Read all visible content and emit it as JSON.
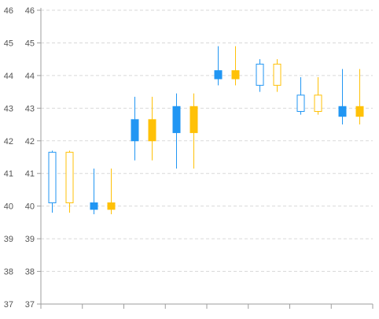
{
  "chart_data": {
    "type": "candlestick",
    "title": "",
    "xlabel": "",
    "ylabel": "",
    "ylim": [
      37,
      46
    ],
    "yticks": [
      37,
      38,
      39,
      40,
      41,
      42,
      43,
      44,
      45,
      46
    ],
    "grid": true,
    "legend": "none",
    "categories": 8,
    "series": [
      {
        "color": "#2196F3",
        "points": [
          {
            "open": 40.1,
            "high": 41.7,
            "low": 39.8,
            "close": 41.65
          },
          {
            "open": 40.1,
            "high": 41.15,
            "low": 39.75,
            "close": 39.9
          },
          {
            "open": 42.65,
            "high": 43.35,
            "low": 41.4,
            "close": 42.0
          },
          {
            "open": 43.05,
            "high": 43.45,
            "low": 41.15,
            "close": 42.25
          },
          {
            "open": 44.15,
            "high": 44.9,
            "low": 43.7,
            "close": 43.9
          },
          {
            "open": 43.7,
            "high": 44.5,
            "low": 43.5,
            "close": 44.35
          },
          {
            "open": 42.9,
            "high": 43.95,
            "low": 42.8,
            "close": 43.4
          },
          {
            "open": 43.05,
            "high": 44.2,
            "low": 42.5,
            "close": 42.75
          }
        ]
      },
      {
        "color": "#FFC107",
        "points": [
          {
            "open": 40.1,
            "high": 41.7,
            "low": 39.8,
            "close": 41.65
          },
          {
            "open": 40.1,
            "high": 41.15,
            "low": 39.75,
            "close": 39.9
          },
          {
            "open": 42.65,
            "high": 43.35,
            "low": 41.4,
            "close": 42.0
          },
          {
            "open": 43.05,
            "high": 43.45,
            "low": 41.15,
            "close": 42.25
          },
          {
            "open": 44.15,
            "high": 44.9,
            "low": 43.7,
            "close": 43.9
          },
          {
            "open": 43.7,
            "high": 44.5,
            "low": 43.5,
            "close": 44.35
          },
          {
            "open": 42.9,
            "high": 43.95,
            "low": 42.8,
            "close": 43.4
          },
          {
            "open": 43.05,
            "high": 44.2,
            "low": 42.5,
            "close": 42.75
          }
        ]
      }
    ]
  }
}
